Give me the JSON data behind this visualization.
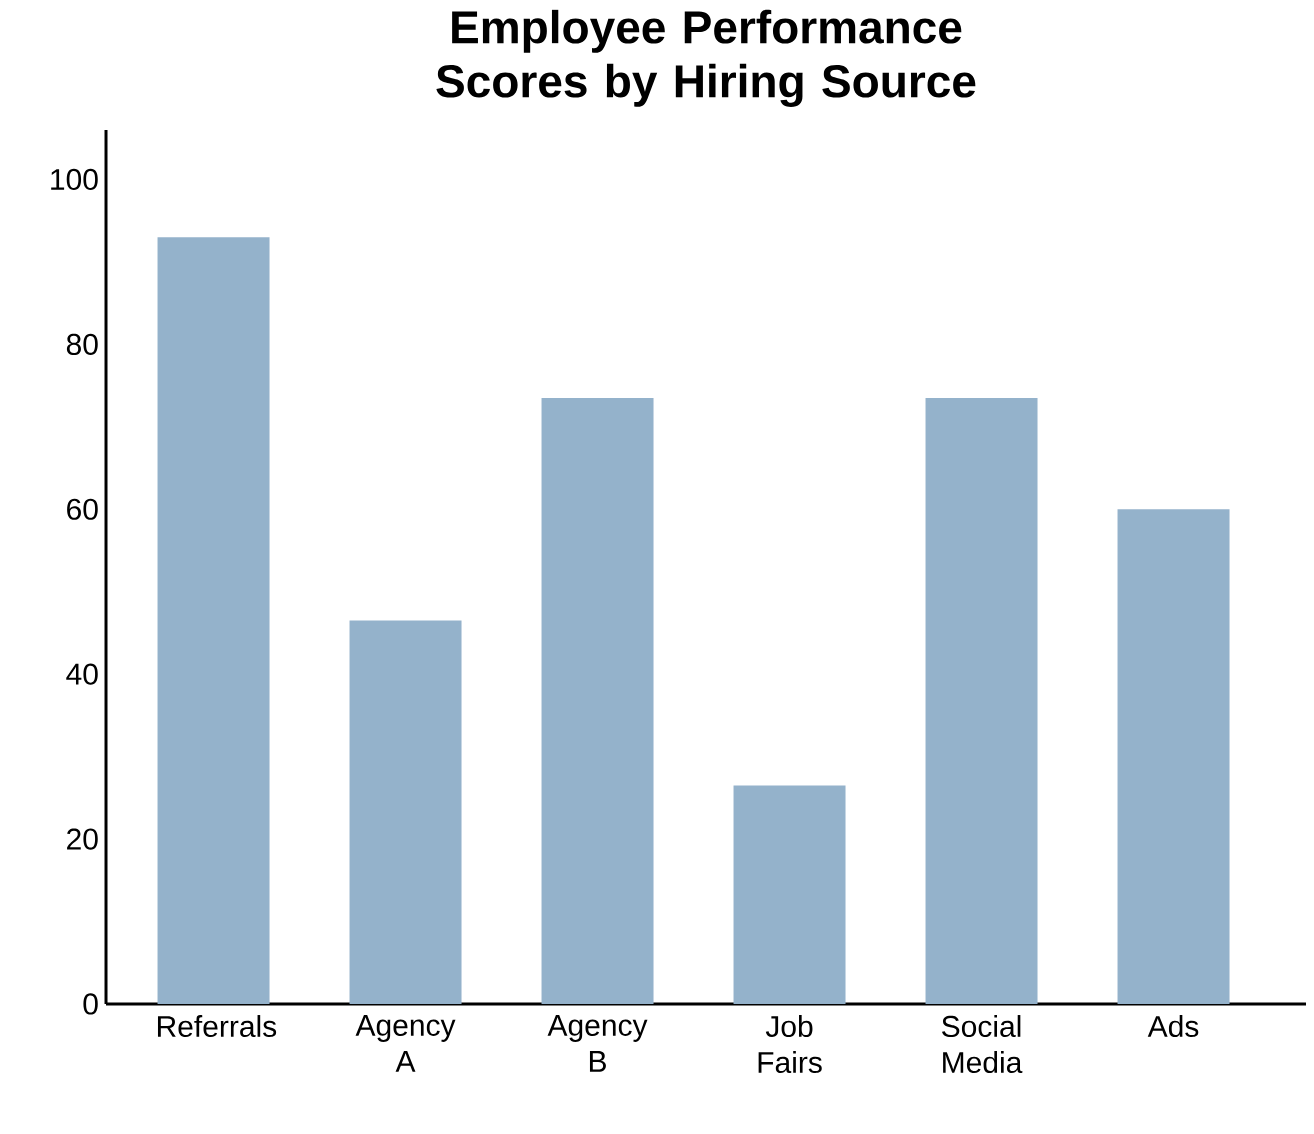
{
  "chart_data": {
    "type": "bar",
    "title": "Employee Performance Scores by Hiring Source",
    "categories": [
      "Referrals",
      "Agency A",
      "Agency B",
      "Job Fairs",
      "Social Media",
      "Ads"
    ],
    "values": [
      93,
      46.5,
      73.5,
      26.5,
      73.5,
      60
    ],
    "color": "#94b2cb",
    "ylim": [
      0,
      106
    ],
    "yticks": [
      0,
      20,
      40,
      60,
      80,
      100
    ],
    "grid": false
  }
}
